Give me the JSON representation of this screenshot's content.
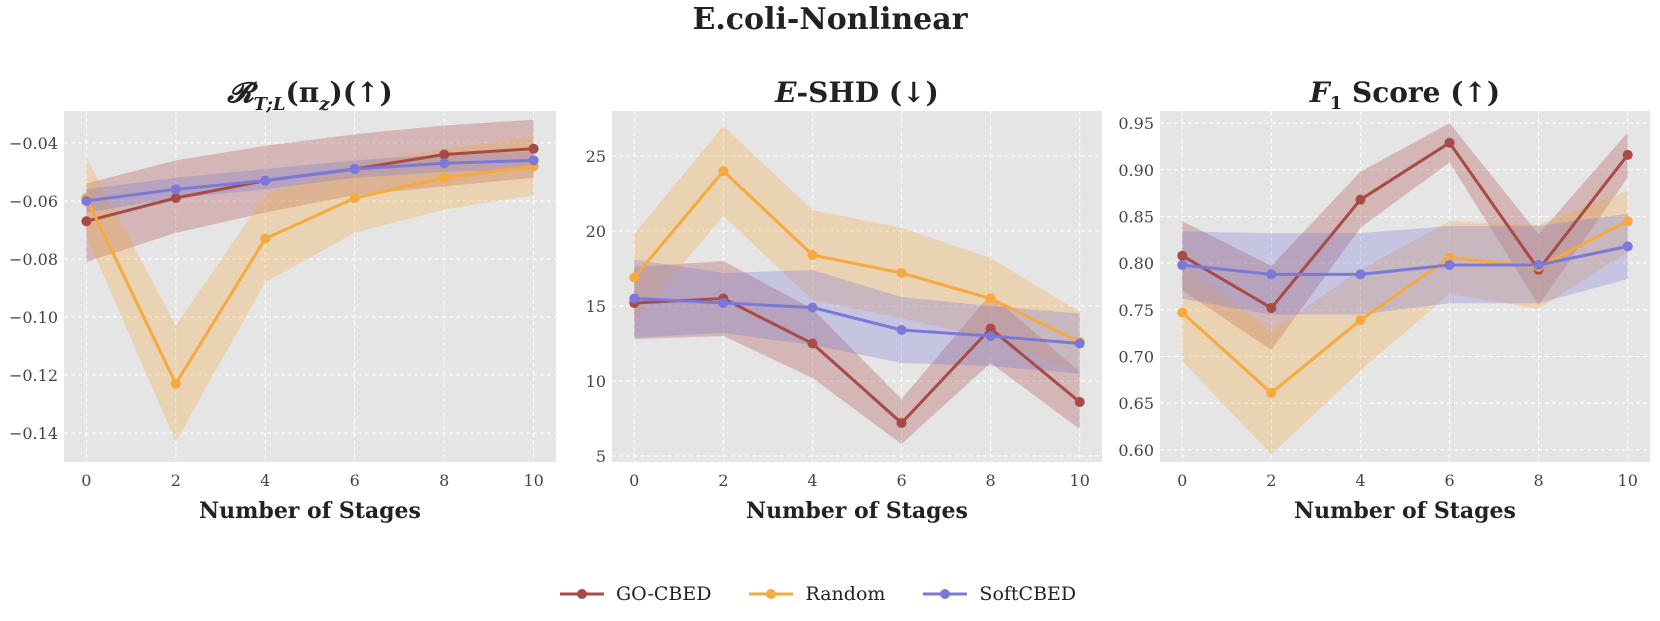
{
  "figure": {
    "title": "E.coli-Nonlinear"
  },
  "colors": {
    "GO-CBED": "#a84a45",
    "Random": "#f5a93f",
    "SoftCBED": "#7b78d8",
    "panel_bg": "#e5e5e5",
    "grid": "#ffffff"
  },
  "legend": [
    "GO-CBED",
    "Random",
    "SoftCBED"
  ],
  "chart_data": [
    {
      "type": "line",
      "title": "𝓡T;L(πz)(↑)",
      "xlabel": "Number of Stages",
      "ylabel": "",
      "x": [
        0,
        2,
        4,
        6,
        8,
        10
      ],
      "xticks": [
        0,
        2,
        4,
        6,
        8,
        10
      ],
      "xlim": [
        -0.5,
        10.5
      ],
      "yticks": [
        -0.14,
        -0.12,
        -0.1,
        -0.08,
        -0.06,
        -0.04
      ],
      "ytick_labels": [
        "−0.14",
        "−0.12",
        "−0.10",
        "−0.08",
        "−0.06",
        "−0.04"
      ],
      "ylim": [
        -0.15,
        -0.029
      ],
      "series": [
        {
          "name": "GO-CBED",
          "values": [
            -0.067,
            -0.059,
            -0.053,
            -0.049,
            -0.044,
            -0.042
          ],
          "lower": [
            -0.081,
            -0.071,
            -0.064,
            -0.058,
            -0.055,
            -0.052
          ],
          "upper": [
            -0.054,
            -0.046,
            -0.041,
            -0.037,
            -0.034,
            -0.032
          ]
        },
        {
          "name": "Random",
          "values": [
            -0.059,
            -0.123,
            -0.073,
            -0.059,
            -0.052,
            -0.048
          ],
          "lower": [
            -0.072,
            -0.143,
            -0.088,
            -0.071,
            -0.063,
            -0.058
          ],
          "upper": [
            -0.045,
            -0.103,
            -0.058,
            -0.047,
            -0.042,
            -0.038
          ]
        },
        {
          "name": "SoftCBED",
          "values": [
            -0.06,
            -0.056,
            -0.053,
            -0.049,
            -0.047,
            -0.046
          ],
          "lower": [
            -0.064,
            -0.059,
            -0.056,
            -0.052,
            -0.05,
            -0.049
          ],
          "upper": [
            -0.056,
            -0.052,
            -0.049,
            -0.046,
            -0.044,
            -0.043
          ]
        }
      ]
    },
    {
      "type": "line",
      "title": "E-SHD (↓)",
      "xlabel": "Number of Stages",
      "ylabel": "",
      "x": [
        0,
        2,
        4,
        6,
        8,
        10
      ],
      "xticks": [
        0,
        2,
        4,
        6,
        8,
        10
      ],
      "xlim": [
        -0.5,
        10.5
      ],
      "yticks": [
        5,
        10,
        15,
        20,
        25
      ],
      "ytick_labels": [
        "5",
        "10",
        "15",
        "20",
        "25"
      ],
      "ylim": [
        4.6,
        28
      ],
      "series": [
        {
          "name": "GO-CBED",
          "values": [
            15.2,
            15.5,
            12.5,
            7.2,
            13.5,
            8.6
          ],
          "lower": [
            12.8,
            13.0,
            10.2,
            5.8,
            11.2,
            6.8
          ],
          "upper": [
            17.6,
            18.0,
            14.8,
            8.8,
            15.8,
            10.6
          ]
        },
        {
          "name": "Random",
          "values": [
            16.9,
            24.0,
            18.4,
            17.2,
            15.5,
            12.6
          ],
          "lower": [
            14.0,
            21.0,
            15.4,
            14.2,
            12.8,
            10.6
          ],
          "upper": [
            19.8,
            27.0,
            21.4,
            20.2,
            18.2,
            14.6
          ]
        },
        {
          "name": "SoftCBED",
          "values": [
            15.5,
            15.2,
            14.9,
            13.4,
            13.0,
            12.5
          ],
          "lower": [
            12.9,
            13.2,
            12.4,
            11.2,
            11.0,
            10.5
          ],
          "upper": [
            18.1,
            17.2,
            17.4,
            15.6,
            15.0,
            14.5
          ]
        }
      ]
    },
    {
      "type": "line",
      "title": "F1 Score (↑)",
      "xlabel": "Number of Stages",
      "ylabel": "",
      "x": [
        0,
        2,
        4,
        6,
        8,
        10
      ],
      "xticks": [
        0,
        2,
        4,
        6,
        8,
        10
      ],
      "xlim": [
        -0.5,
        10.5
      ],
      "yticks": [
        0.6,
        0.65,
        0.7,
        0.75,
        0.8,
        0.85,
        0.9,
        0.95
      ],
      "ytick_labels": [
        "0.60",
        "0.65",
        "0.70",
        "0.75",
        "0.80",
        "0.85",
        "0.90",
        "0.95"
      ],
      "ylim": [
        0.587,
        0.963
      ],
      "series": [
        {
          "name": "GO-CBED",
          "values": [
            0.808,
            0.752,
            0.868,
            0.929,
            0.793,
            0.916
          ],
          "lower": [
            0.771,
            0.707,
            0.838,
            0.908,
            0.755,
            0.892
          ],
          "upper": [
            0.845,
            0.797,
            0.898,
            0.95,
            0.831,
            0.94
          ]
        },
        {
          "name": "Random",
          "values": [
            0.747,
            0.661,
            0.739,
            0.806,
            0.796,
            0.845
          ],
          "lower": [
            0.695,
            0.595,
            0.685,
            0.767,
            0.751,
            0.812
          ],
          "upper": [
            0.799,
            0.727,
            0.793,
            0.845,
            0.841,
            0.878
          ]
        },
        {
          "name": "SoftCBED",
          "values": [
            0.798,
            0.788,
            0.788,
            0.798,
            0.798,
            0.818
          ],
          "lower": [
            0.762,
            0.745,
            0.745,
            0.757,
            0.757,
            0.783
          ],
          "upper": [
            0.834,
            0.832,
            0.832,
            0.84,
            0.84,
            0.853
          ]
        }
      ]
    }
  ]
}
